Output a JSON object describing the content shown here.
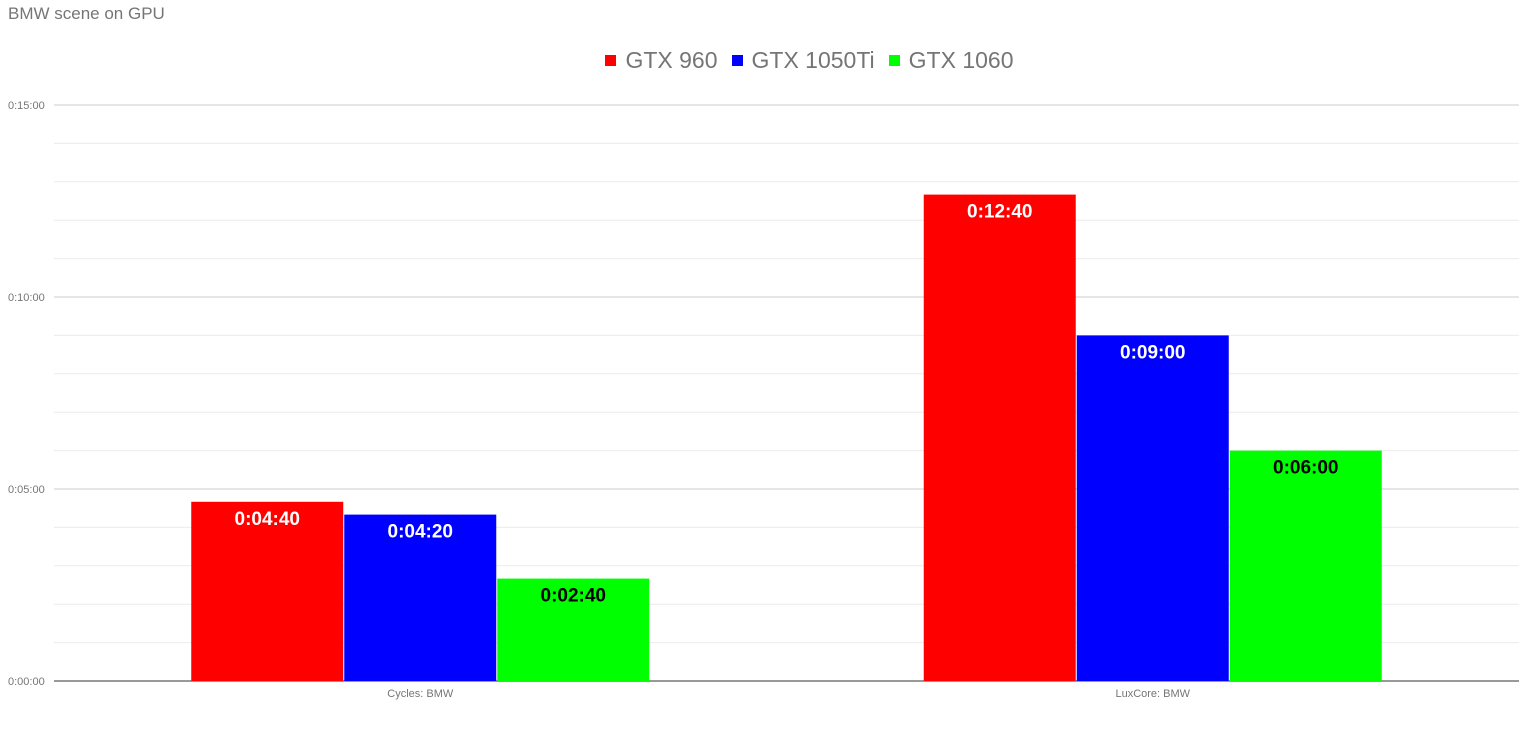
{
  "chart_data": {
    "type": "bar",
    "title": "BMW scene on GPU",
    "categories": [
      "Cycles: BMW",
      "LuxCore: BMW"
    ],
    "series": [
      {
        "name": "GTX 960",
        "color": "#ff0000",
        "values": [
          280,
          760
        ],
        "labels": [
          "0:04:40",
          "0:12:40"
        ],
        "label_color": "#ffffff"
      },
      {
        "name": "GTX 1050Ti",
        "color": "#0000ff",
        "values": [
          260,
          540
        ],
        "labels": [
          "0:04:20",
          "0:09:00"
        ],
        "label_color": "#ffffff"
      },
      {
        "name": "GTX 1060",
        "color": "#00ff00",
        "values": [
          160,
          360
        ],
        "labels": [
          "0:02:40",
          "0:06:00"
        ],
        "label_color": "#000000"
      }
    ],
    "ylim": [
      0,
      900
    ],
    "y_unit": "seconds",
    "yticks": [
      0,
      300,
      600,
      900
    ],
    "ytick_labels": [
      "0:00:00",
      "0:05:00",
      "0:10:00",
      "0:15:00"
    ],
    "minor_gridlines_per_major": 4,
    "grid": true,
    "legend_position": "top-center",
    "xlabel": "",
    "ylabel": ""
  }
}
